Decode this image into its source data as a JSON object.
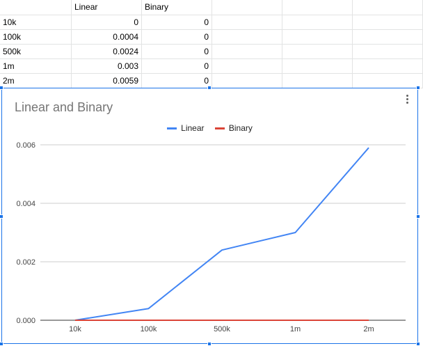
{
  "sheet": {
    "headers": [
      "",
      "Linear",
      "Binary"
    ],
    "rows": [
      [
        "10k",
        "0",
        "0"
      ],
      [
        "100k",
        "0.0004",
        "0"
      ],
      [
        "500k",
        "0.0024",
        "0"
      ],
      [
        "1m",
        "0.003",
        "0"
      ],
      [
        "2m",
        "0.0059",
        "0"
      ]
    ]
  },
  "chart": {
    "title": "Linear and Binary",
    "legend": [
      {
        "label": "Linear",
        "color": "#4285f4"
      },
      {
        "label": "Binary",
        "color": "#db4437"
      }
    ]
  },
  "chart_data": {
    "type": "line",
    "title": "Linear and Binary",
    "categories": [
      "10k",
      "100k",
      "500k",
      "1m",
      "2m"
    ],
    "series": [
      {
        "name": "Linear",
        "values": [
          0,
          0.0004,
          0.0024,
          0.003,
          0.0059
        ],
        "color": "#4285f4"
      },
      {
        "name": "Binary",
        "values": [
          0,
          0,
          0,
          0,
          0
        ],
        "color": "#db4437"
      }
    ],
    "yticks": [
      "0.000",
      "0.002",
      "0.004",
      "0.006"
    ],
    "ylim": [
      0,
      0.006
    ],
    "grid": true,
    "legend_position": "top"
  }
}
